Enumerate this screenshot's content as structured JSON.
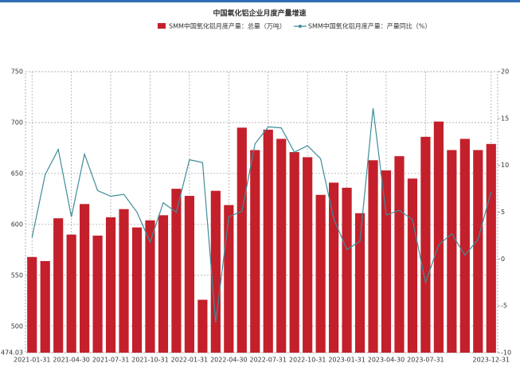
{
  "chart_data": {
    "type": "bar_line",
    "title": "中国氧化铝企业月度产量增速",
    "categories": [
      "2021-01-31",
      null,
      null,
      "2021-04-30",
      null,
      null,
      "2021-07-31",
      null,
      null,
      "2021-10-31",
      null,
      null,
      "2022-01-31",
      null,
      null,
      "2022-04-30",
      null,
      null,
      "2022-07-31",
      null,
      null,
      "2022-10-31",
      null,
      null,
      "2023-01-31",
      null,
      null,
      "2023-04-30",
      null,
      null,
      "2023-07-31",
      null,
      null,
      null,
      null,
      "2023-12-31"
    ],
    "series": [
      {
        "name": "SMM中国氧化铝月度产量：总量（万吨）",
        "color": "#c3202b",
        "type": "bar",
        "values": [
          568,
          564,
          606,
          590,
          620,
          589,
          607,
          615,
          597,
          604,
          609,
          635,
          628,
          526,
          633,
          619,
          695,
          673,
          693,
          684,
          671,
          666,
          629,
          641,
          636,
          611,
          663,
          653,
          667,
          645,
          686,
          701,
          673,
          684,
          673,
          679
        ]
      },
      {
        "name": "SMM中国氧化铝月度产量：产量同比（%）",
        "color": "#3f8c99",
        "type": "line",
        "axis": "y2",
        "values": [
          2.3,
          9.0,
          11.7,
          4.5,
          11.2,
          7.3,
          6.7,
          6.9,
          5.0,
          1.8,
          6.0,
          5.0,
          10.6,
          10.3,
          -6.8,
          4.5,
          5.1,
          12.3,
          14.1,
          14.0,
          11.4,
          12.1,
          10.7,
          4.3,
          1.0,
          1.9,
          16.1,
          4.7,
          5.2,
          4.2,
          -2.5,
          1.5,
          2.7,
          0.4,
          2.1,
          7.2
        ]
      }
    ],
    "ylim": [
      474.03,
      750
    ],
    "yticks": [
      474.03,
      500,
      550,
      600,
      650,
      700,
      750
    ],
    "y2lim": [
      -10,
      20
    ],
    "y2ticks": [
      -10,
      -5,
      0,
      5,
      10,
      15,
      20
    ],
    "grid": true
  }
}
